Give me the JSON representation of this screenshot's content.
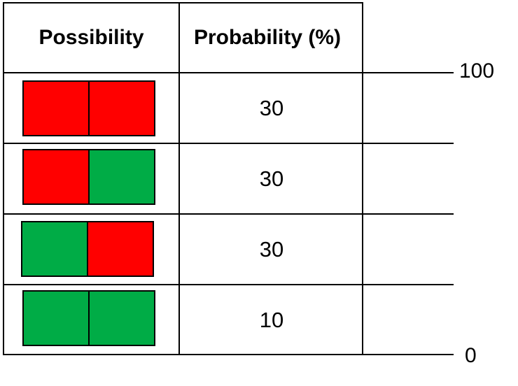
{
  "headers": {
    "possibility": "Possibility",
    "probability": "Probability (%)"
  },
  "colors": {
    "red": "#ff0000",
    "green": "#00ac46"
  },
  "rows": [
    {
      "left": "red",
      "right": "red",
      "probability": "30"
    },
    {
      "left": "red",
      "right": "green",
      "probability": "30"
    },
    {
      "left": "green",
      "right": "red",
      "probability": "30"
    },
    {
      "left": "green",
      "right": "green",
      "probability": "10"
    }
  ],
  "scale": {
    "top": "100",
    "bottom": "0"
  }
}
